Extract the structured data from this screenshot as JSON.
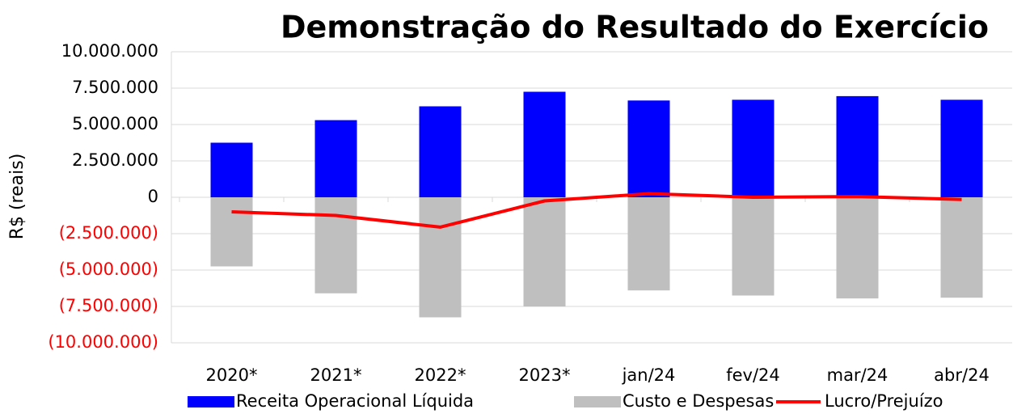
{
  "chart_data": {
    "type": "bar_line",
    "title": "Demonstração do Resultado do Exercício",
    "y_label": "R$ (reais)",
    "categories": [
      "2020*",
      "2021*",
      "2022*",
      "2023*",
      "jan/24",
      "fev/24",
      "mar/24",
      "abr/24"
    ],
    "series": [
      {
        "name": "Receita Operacional Líquida",
        "type": "bar",
        "color": "#0000ff",
        "values": [
          3750000,
          5300000,
          6250000,
          7250000,
          6650000,
          6700000,
          6950000,
          6700000
        ]
      },
      {
        "name": "Custo e Despesas",
        "type": "bar",
        "color": "#bfbfbf",
        "values": [
          -4750000,
          -6600000,
          -8250000,
          -7500000,
          -6400000,
          -6750000,
          -6950000,
          -6900000
        ]
      },
      {
        "name": "Lucro/Prejuízo",
        "type": "line",
        "color": "#ff0000",
        "values": [
          -1000000,
          -1250000,
          -2050000,
          -250000,
          250000,
          0,
          50000,
          -150000
        ]
      }
    ],
    "ylim": [
      -10000000,
      10000000
    ],
    "yticks": [
      {
        "value": 10000000,
        "label": "10.000.000"
      },
      {
        "value": 7500000,
        "label": "7.500.000"
      },
      {
        "value": 5000000,
        "label": "5.000.000"
      },
      {
        "value": 2500000,
        "label": "2.500.000"
      },
      0,
      {
        "value": -2500000,
        "label": "(2.500.000)"
      },
      {
        "value": -5000000,
        "label": "(5.000.000)"
      },
      {
        "value": -7500000,
        "label": "(7.500.000)"
      },
      {
        "value": -10000000,
        "label": "(10.000.000)"
      }
    ],
    "negative_tick_color": "#ff0000",
    "grid": true
  }
}
